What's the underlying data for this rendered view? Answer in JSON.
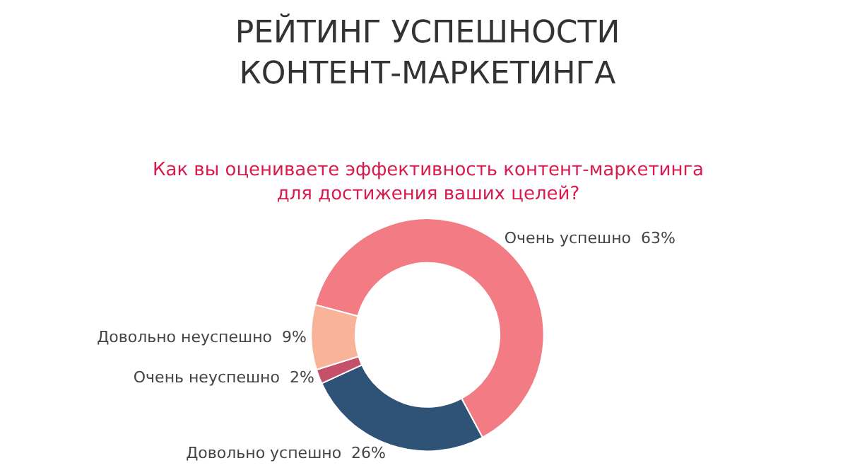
{
  "chart_data": {
    "type": "donut",
    "title": "РЕЙТИНГ УСПЕШНОСТИ\nКОНТЕНТ-МАРКЕТИНГА",
    "subtitle": "Как вы оцениваете эффективность контент-маркетинга\nдля достижения ваших целей?",
    "categories": [
      "Очень успешно",
      "Довольно успешно",
      "Очень неуспешно",
      "Довольно неуспешно"
    ],
    "values": [
      63,
      26,
      2,
      9
    ],
    "colors": [
      "#f37b84",
      "#2f5277",
      "#c4506a",
      "#f8b398"
    ],
    "value_labels": [
      "63%",
      "26%",
      "2%",
      "9%"
    ],
    "legend": false
  }
}
